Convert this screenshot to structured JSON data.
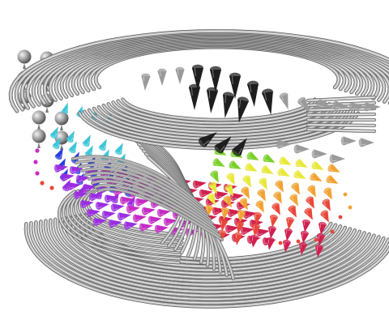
{
  "scene": {
    "background_color": "#ffffff",
    "tube_color": "#b4b4b4",
    "tube_highlight_color": "#f4f4f4",
    "tube_shadow_color": "#5e5e5e",
    "cone_gray_color": "#9a9a9a",
    "cone_dark_color": "#1e1e1e",
    "glyph_palette": [
      "#2b3ee0",
      "#3fc6d8",
      "#1fb07a",
      "#7ad02a",
      "#e8e83a",
      "#f2a233",
      "#e8483a",
      "#d0204f",
      "#c42cc4",
      "#9a2ee0"
    ]
  }
}
